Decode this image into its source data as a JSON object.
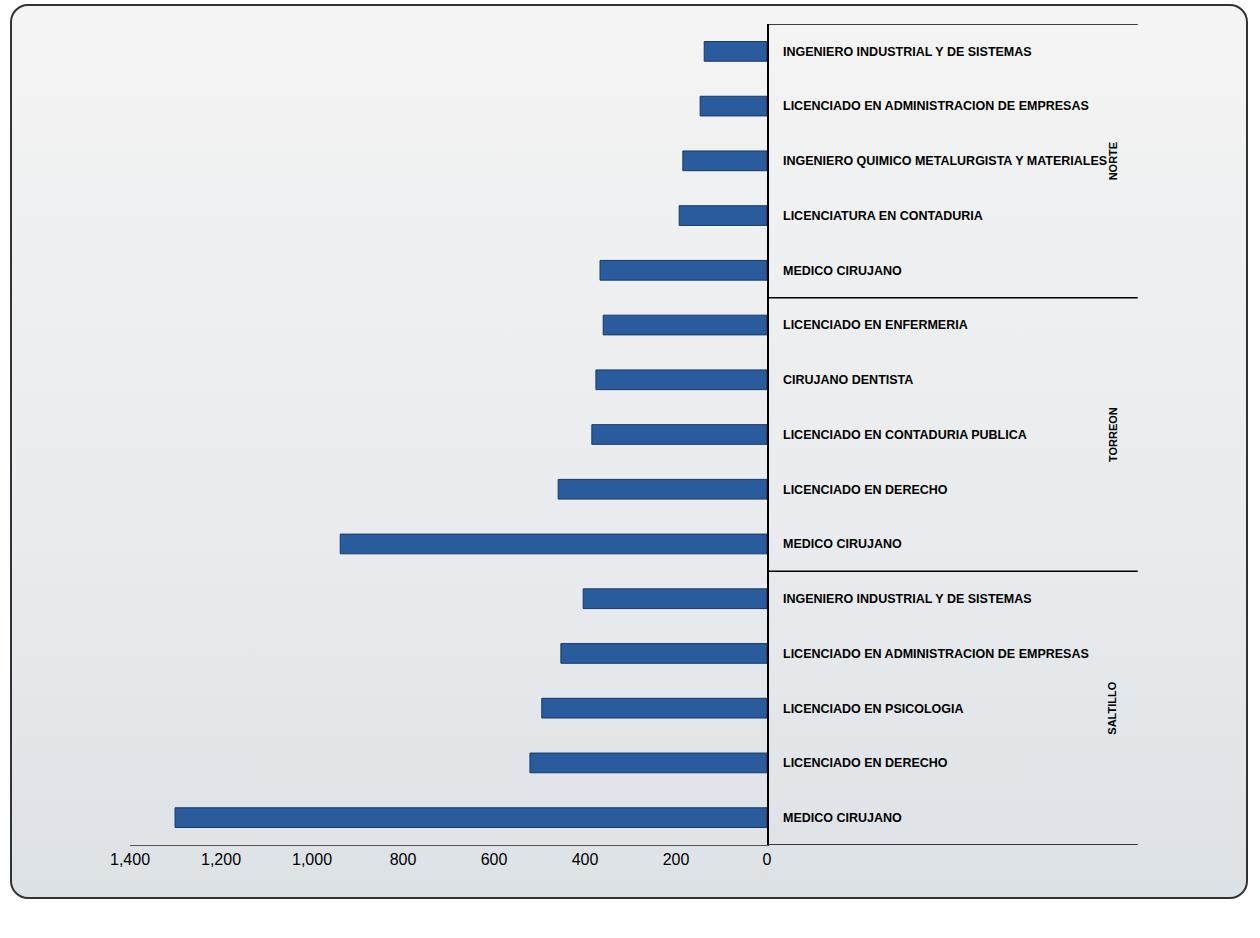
{
  "chart_data": {
    "type": "bar",
    "orientation": "horizontal",
    "categories": [
      "INGENIERO INDUSTRIAL Y DE SISTEMAS",
      "LICENCIADO EN ADMINISTRACION DE EMPRESAS",
      "INGENIERO QUIMICO METALURGISTA Y MATERIALES",
      "LICENCIATURA EN CONTADURIA",
      "MEDICO CIRUJANO",
      "LICENCIADO EN ENFERMERIA",
      "CIRUJANO DENTISTA",
      "LICENCIADO EN CONTADURIA PUBLICA",
      "LICENCIADO EN DERECHO",
      "MEDICO CIRUJANO",
      "INGENIERO INDUSTRIAL Y DE SISTEMAS",
      "LICENCIADO EN ADMINISTRACION DE EMPRESAS",
      "LICENCIADO EN PSICOLOGIA",
      "LICENCIADO EN DERECHO",
      "MEDICO CIRUJANO"
    ],
    "groups": [
      "NORTE",
      "NORTE",
      "NORTE",
      "NORTE",
      "NORTE",
      "TORREON",
      "TORREON",
      "TORREON",
      "TORREON",
      "TORREON",
      "SALTILLO",
      "SALTILLO",
      "SALTILLO",
      "SALTILLO",
      "SALTILLO"
    ],
    "values": [
      138,
      147,
      185,
      193,
      367,
      360,
      376,
      385,
      459,
      938,
      404,
      453,
      495,
      521,
      1301
    ],
    "color": "#2a5b9c",
    "xlim": [
      1400,
      0
    ],
    "xticks": [
      {
        "value": 1400,
        "label": "1,400"
      },
      {
        "value": 1200,
        "label": "1,200"
      },
      {
        "value": 1000,
        "label": "1,000"
      },
      800,
      600,
      400,
      200,
      0
    ],
    "grid": false
  }
}
